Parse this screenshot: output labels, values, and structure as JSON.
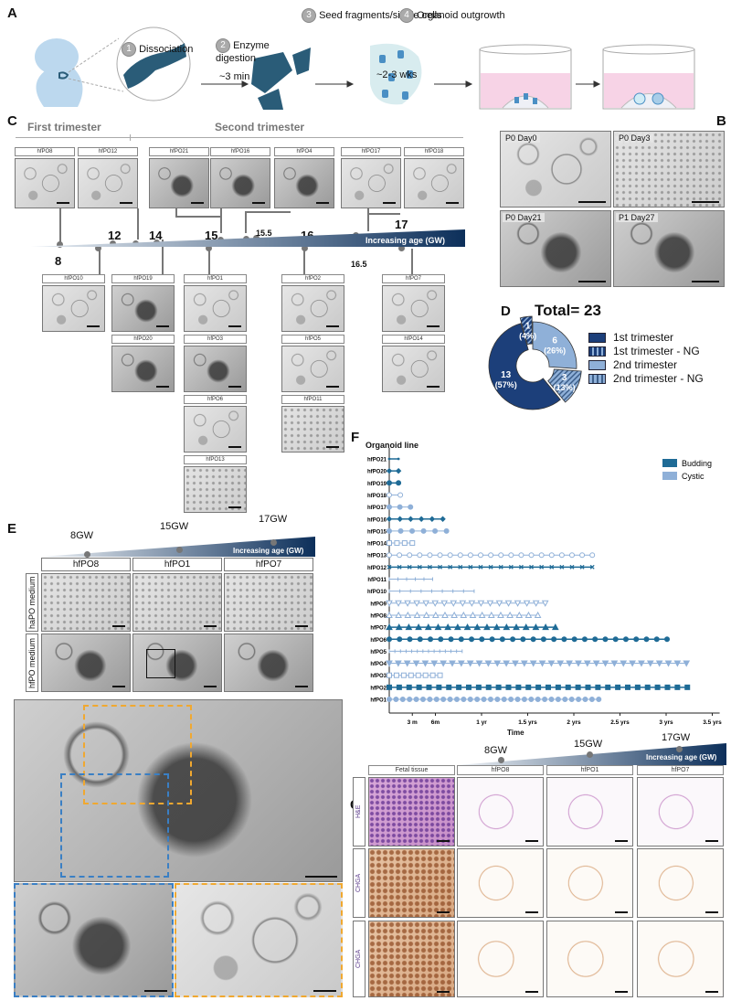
{
  "panel_letters": {
    "a": "A",
    "b": "B",
    "c": "C",
    "d": "D",
    "e": "E",
    "f": "F",
    "g": "G"
  },
  "panel_a": {
    "steps": [
      {
        "num": "1",
        "label": "Dissociation"
      },
      {
        "num": "2",
        "label": "Enzyme digestion"
      },
      {
        "num": "3",
        "label": "Seed fragments/single cells"
      },
      {
        "num": "4",
        "label": "Organoid outgrowth"
      }
    ],
    "digestion_time": "~3 min",
    "outgrowth_time": "~2-3 wks",
    "colors": {
      "embryo": "#bcd8ee",
      "pancreas": "#2a5c78",
      "medium": "#f7d3e6",
      "cells": "#4a8fc4"
    }
  },
  "panel_c": {
    "first_trimester": "First trimester",
    "second_trimester": "Second trimester",
    "axis_label": "Increasing age (GW)",
    "ages": [
      "8",
      "12",
      "14",
      "15",
      "15.5",
      "16",
      "16.5",
      "17"
    ],
    "top_row": [
      "hfPO8",
      "hfPO12",
      "hfPO21",
      "hfPO16",
      "hfPO4",
      "hfPO17",
      "hfPO18"
    ],
    "bottom": [
      "hfPO10",
      "hfPO19",
      "hfPO20",
      "hfPO1",
      "hfPO3",
      "hfPO6",
      "hfPO13",
      "hfPO2",
      "hfPO5",
      "hfPO11",
      "hfPO7",
      "hfPO14"
    ]
  },
  "panel_b": {
    "captions": [
      "P0 Day0",
      "P0 Day3",
      "P0 Day21",
      "P1 Day27"
    ]
  },
  "panel_d": {
    "title": "Total= 23",
    "chart_data": {
      "type": "pie",
      "donut": true,
      "slices": [
        {
          "label": "2nd trimester",
          "value": 6,
          "text": "6",
          "pct": "(26%)",
          "color": "#8fb0d8",
          "hatched": false,
          "exploded": false
        },
        {
          "label": "2nd trimester - NG",
          "value": 3,
          "text": "3",
          "pct": "(13%)",
          "color": "#8fb0d8",
          "hatched": true,
          "exploded": true
        },
        {
          "label": "1st trimester",
          "value": 13,
          "text": "13",
          "pct": "(57%)",
          "color": "#1c3f7a",
          "hatched": false,
          "exploded": false
        },
        {
          "label": "1st trimester - NG",
          "value": 1,
          "text": "1",
          "pct": "(4%)",
          "color": "#1c3f7a",
          "hatched": true,
          "exploded": true
        }
      ],
      "legend": [
        "1st trimester",
        "1st trimester - NG",
        "2nd trimester",
        "2nd trimester - NG"
      ],
      "legend_placement": "right"
    }
  },
  "panel_e": {
    "ages": [
      "8GW",
      "15GW",
      "17GW"
    ],
    "axis_label": "Increasing age (GW)",
    "columns": [
      "hfPO8",
      "hfPO1",
      "hfPO7"
    ],
    "rows": [
      "haPO medium",
      "hfPO medium"
    ],
    "inset_colors": {
      "blue": "#3a7fc4",
      "orange": "#f0a830"
    }
  },
  "chart_data": {
    "type": "line",
    "title": "Organoid line",
    "xlabel": "Time",
    "xlim_years": [
      0,
      3.55
    ],
    "xticks": [
      {
        "v": 0.25,
        "label": "3 m"
      },
      {
        "v": 0.5,
        "label": "6m"
      },
      {
        "v": 1,
        "label": "1 yr"
      },
      {
        "v": 1.5,
        "label": "1.5 yrs"
      },
      {
        "v": 2,
        "label": "2 yrs"
      },
      {
        "v": 2.5,
        "label": "2.5 yrs"
      },
      {
        "v": 3,
        "label": "3 yrs"
      },
      {
        "v": 3.5,
        "label": "3.5 yrs"
      }
    ],
    "legend": [
      {
        "name": "Budding",
        "color": "#1f6b96"
      },
      {
        "name": "Cystic",
        "color": "#8fb0d8"
      }
    ],
    "legend_placement": "top-right",
    "lines": [
      {
        "name": "hfPO21",
        "type": "Budding",
        "marker": "dot",
        "end_years": 0.1,
        "passages": 2
      },
      {
        "name": "hfPO20",
        "type": "Budding",
        "marker": "diamond",
        "end_years": 0.1,
        "passages": 2
      },
      {
        "name": "hfPO19",
        "type": "Budding",
        "marker": "circle",
        "end_years": 0.1,
        "passages": 2
      },
      {
        "name": "hfPO18",
        "type": "Cystic",
        "marker": "open-circle",
        "end_years": 0.12,
        "passages": 2
      },
      {
        "name": "hfPO17",
        "type": "Cystic",
        "marker": "circle",
        "end_years": 0.23,
        "passages": 3
      },
      {
        "name": "hfPO16",
        "type": "Budding",
        "marker": "diamond",
        "end_years": 0.58,
        "passages": 6
      },
      {
        "name": "hfPO15",
        "type": "Cystic",
        "marker": "circle",
        "end_years": 0.62,
        "passages": 6
      },
      {
        "name": "hfPO14",
        "type": "Cystic",
        "marker": "open-square",
        "end_years": 0.25,
        "passages": 4
      },
      {
        "name": "hfPO13",
        "type": "Cystic",
        "marker": "open-circle",
        "end_years": 2.2,
        "passages": 21
      },
      {
        "name": "hfPO12",
        "type": "Budding",
        "marker": "x",
        "end_years": 2.2,
        "passages": 21
      },
      {
        "name": "hfPO11",
        "type": "Cystic",
        "marker": "plus",
        "end_years": 0.47,
        "passages": 6
      },
      {
        "name": "hfPO10",
        "type": "Cystic",
        "marker": "plus",
        "end_years": 0.92,
        "passages": 9
      },
      {
        "name": "hfPO9",
        "type": "Cystic",
        "marker": "open-triangle-down",
        "end_years": 1.69,
        "passages": 18
      },
      {
        "name": "hfPO8",
        "type": "Cystic",
        "marker": "open-triangle",
        "end_years": 1.61,
        "passages": 17
      },
      {
        "name": "hfPO7",
        "type": "Budding",
        "marker": "triangle",
        "end_years": 1.8,
        "passages": 18
      },
      {
        "name": "hfPO6",
        "type": "Budding",
        "marker": "circle",
        "end_years": 3.01,
        "passages": 28
      },
      {
        "name": "hfPO5",
        "type": "Cystic",
        "marker": "plus",
        "end_years": 0.79,
        "passages": 14
      },
      {
        "name": "hfPO4",
        "type": "Cystic",
        "marker": "triangle-down",
        "end_years": 3.22,
        "passages": 34
      },
      {
        "name": "hfPO3",
        "type": "Cystic",
        "marker": "open-square",
        "end_years": 0.55,
        "passages": 8
      },
      {
        "name": "hfPO2",
        "type": "Budding",
        "marker": "square",
        "end_years": 3.23,
        "passages": 31
      },
      {
        "name": "hfPO1",
        "type": "Cystic",
        "marker": "circle",
        "end_years": 2.27,
        "passages": 32
      }
    ]
  },
  "panel_g": {
    "ages": [
      "8GW",
      "15GW",
      "17GW"
    ],
    "axis_label": "Increasing age (GW)",
    "columns": [
      "Fetal tissue",
      "hfPO8",
      "hfPO1",
      "hfPO7"
    ],
    "rows": [
      "H&E",
      "CHGA",
      "CHGA"
    ]
  }
}
